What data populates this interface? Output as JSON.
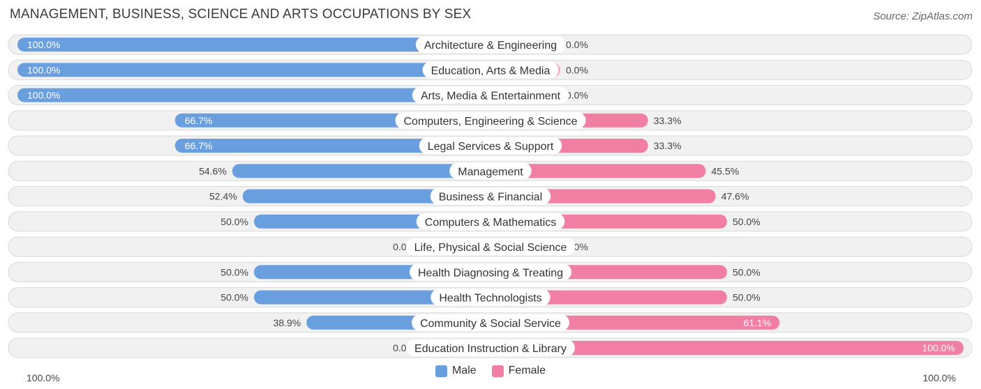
{
  "chart_data": {
    "type": "bar",
    "orientation": "horizontal-diverging",
    "title": "MANAGEMENT, BUSINESS, SCIENCE AND ARTS OCCUPATIONS BY SEX",
    "source": "Source: ZipAtlas.com",
    "categories": [
      "Architecture & Engineering",
      "Education, Arts & Media",
      "Arts, Media & Entertainment",
      "Computers, Engineering & Science",
      "Legal Services & Support",
      "Management",
      "Business & Financial",
      "Computers & Mathematics",
      "Life, Physical & Social Science",
      "Health Diagnosing & Treating",
      "Health Technologists",
      "Community & Social Service",
      "Education Instruction & Library"
    ],
    "series": [
      {
        "name": "Male",
        "values": [
          100.0,
          100.0,
          100.0,
          66.7,
          66.7,
          54.6,
          52.4,
          50.0,
          0.0,
          50.0,
          50.0,
          38.9,
          0.0
        ],
        "labels": [
          "100.0%",
          "100.0%",
          "100.0%",
          "66.7%",
          "66.7%",
          "54.6%",
          "52.4%",
          "50.0%",
          "0.0%",
          "50.0%",
          "50.0%",
          "38.9%",
          "0.0%"
        ]
      },
      {
        "name": "Female",
        "values": [
          0.0,
          0.0,
          0.0,
          33.3,
          33.3,
          45.5,
          47.6,
          50.0,
          0.0,
          50.0,
          50.0,
          61.1,
          100.0
        ],
        "labels": [
          "0.0%",
          "0.0%",
          "0.0%",
          "33.3%",
          "33.3%",
          "45.5%",
          "47.6%",
          "50.0%",
          "0.0%",
          "50.0%",
          "50.0%",
          "61.1%",
          "100.0%"
        ]
      }
    ],
    "xlim": [
      -100,
      100
    ],
    "axis_left_label": "100.0%",
    "axis_right_label": "100.0%",
    "legend": [
      "Male",
      "Female"
    ],
    "legend_position": "bottom-center",
    "colors": {
      "male": "#6a9fdf",
      "male_light": "#a9c8ef",
      "female": "#f07fa3",
      "female_light": "#f5a9c2"
    }
  }
}
